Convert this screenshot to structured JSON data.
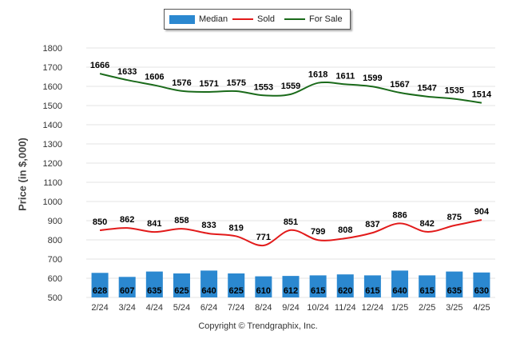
{
  "legend": {
    "median_label": "Median",
    "sold_label": "Sold",
    "forsale_label": "For Sale"
  },
  "copyright": "Copyright © Trendgraphix, Inc.",
  "colors": {
    "median": "#2b88d0",
    "sold": "#e21a1a",
    "forsale": "#1a6a1a",
    "grid": "#e3e3e3"
  },
  "chart_data": {
    "type": "bar",
    "ylabel": "Price (in $,000)",
    "ylim": [
      500,
      1800
    ],
    "yticks": [
      500,
      600,
      700,
      800,
      900,
      1000,
      1100,
      1200,
      1300,
      1400,
      1500,
      1600,
      1700,
      1800
    ],
    "grid": true,
    "legend_position": "top-center",
    "categories": [
      "2/24",
      "3/24",
      "4/24",
      "5/24",
      "6/24",
      "7/24",
      "8/24",
      "9/24",
      "10/24",
      "11/24",
      "12/24",
      "1/25",
      "2/25",
      "3/25",
      "4/25"
    ],
    "series": [
      {
        "name": "Median",
        "type": "bar",
        "values": [
          628,
          607,
          635,
          625,
          640,
          625,
          610,
          612,
          615,
          620,
          615,
          640,
          615,
          635,
          630
        ]
      },
      {
        "name": "Sold",
        "type": "line",
        "values": [
          850,
          862,
          841,
          858,
          833,
          819,
          771,
          851,
          799,
          808,
          837,
          886,
          842,
          875,
          904
        ]
      },
      {
        "name": "For Sale",
        "type": "line",
        "values": [
          1666,
          1633,
          1606,
          1576,
          1571,
          1575,
          1553,
          1559,
          1618,
          1611,
          1599,
          1567,
          1547,
          1535,
          1514
        ]
      }
    ]
  }
}
